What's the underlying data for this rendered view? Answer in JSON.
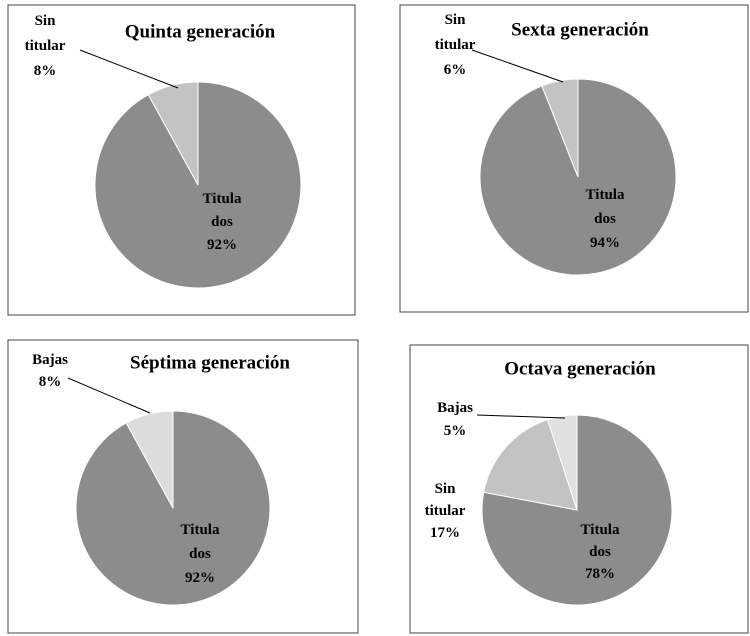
{
  "chart_data": [
    {
      "type": "pie",
      "title": "Quinta generación",
      "categories": [
        "Titula dos",
        "Sin titular"
      ],
      "values": [
        92,
        8
      ],
      "value_labels": [
        "92%",
        "8%"
      ],
      "colors": [
        "#8c8c8c",
        "#c3c3c3"
      ]
    },
    {
      "type": "pie",
      "title": "Sexta generación",
      "categories": [
        "Titula dos",
        "Sin titular"
      ],
      "values": [
        94,
        6
      ],
      "value_labels": [
        "94%",
        "6%"
      ],
      "colors": [
        "#8c8c8c",
        "#c3c3c3"
      ]
    },
    {
      "type": "pie",
      "title": "Séptima generación",
      "categories": [
        "Titula dos",
        "Bajas"
      ],
      "values": [
        92,
        8
      ],
      "value_labels": [
        "92%",
        "8%"
      ],
      "colors": [
        "#8c8c8c",
        "#dcdcdc"
      ]
    },
    {
      "type": "pie",
      "title": "Octava generación",
      "categories": [
        "Titula dos",
        "Sin titular",
        "Bajas"
      ],
      "values": [
        78,
        17,
        5
      ],
      "value_labels": [
        "78%",
        "17%",
        "5%"
      ],
      "colors": [
        "#8c8c8c",
        "#c3c3c3",
        "#e0e0e0"
      ]
    }
  ]
}
